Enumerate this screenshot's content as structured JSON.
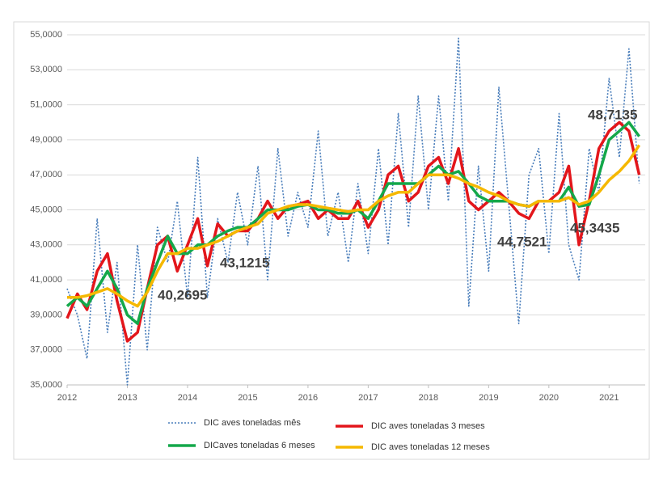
{
  "chart_data": {
    "type": "line",
    "x": [
      2012.0,
      2012.17,
      2012.33,
      2012.5,
      2012.67,
      2012.83,
      2013.0,
      2013.17,
      2013.33,
      2013.5,
      2013.67,
      2013.83,
      2014.0,
      2014.17,
      2014.33,
      2014.5,
      2014.67,
      2014.83,
      2015.0,
      2015.17,
      2015.33,
      2015.5,
      2015.67,
      2015.83,
      2016.0,
      2016.17,
      2016.33,
      2016.5,
      2016.67,
      2016.83,
      2017.0,
      2017.17,
      2017.33,
      2017.5,
      2017.67,
      2017.83,
      2018.0,
      2018.17,
      2018.33,
      2018.5,
      2018.67,
      2018.83,
      2019.0,
      2019.17,
      2019.33,
      2019.5,
      2019.67,
      2019.83,
      2020.0,
      2020.17,
      2020.33,
      2020.5,
      2020.67,
      2020.83,
      2021.0,
      2021.17,
      2021.33,
      2021.5
    ],
    "xlim": [
      2012,
      2021.6
    ],
    "xticks": [
      2012,
      2013,
      2014,
      2015,
      2016,
      2017,
      2018,
      2019,
      2020,
      2021
    ],
    "ylim": [
      35,
      55
    ],
    "yticks": [
      {
        "value": 35,
        "label": "35,0000"
      },
      {
        "value": 37,
        "label": "37,0000"
      },
      {
        "value": 39,
        "label": "39,0000"
      },
      {
        "value": 41,
        "label": "41,0000"
      },
      {
        "value": 43,
        "label": "43,0000"
      },
      {
        "value": 45,
        "label": "45,0000"
      },
      {
        "value": 47,
        "label": "47,0000"
      },
      {
        "value": 49,
        "label": "49,0000"
      },
      {
        "value": 51,
        "label": "51,0000"
      },
      {
        "value": 53,
        "label": "53,0000"
      },
      {
        "value": 55,
        "label": "55,0000"
      }
    ],
    "grid": true,
    "series": [
      {
        "name": "DIC aves toneladas mês",
        "color": "#4a7ebb",
        "dashed": true,
        "values": [
          40.5,
          39,
          36.5,
          44.5,
          38,
          42,
          35,
          43,
          37,
          44,
          42,
          45.5,
          40,
          48,
          40,
          44.5,
          42,
          46,
          43,
          47.5,
          41,
          48.5,
          43.5,
          46,
          44,
          49.5,
          43.5,
          46,
          42,
          46.5,
          42.5,
          48.5,
          43,
          50.5,
          44,
          51.5,
          45,
          51.5,
          45.5,
          54.8,
          39.5,
          47.5,
          41.5,
          52,
          45.5,
          38.5,
          47,
          48.5,
          42.5,
          50.5,
          43,
          41,
          48.5,
          46,
          52.5,
          48,
          54.2,
          46.5
        ]
      },
      {
        "name": "DIC aves toneladas 3 meses",
        "color": "#e3161b",
        "dashed": false,
        "values": [
          38.8,
          40.2,
          39.3,
          41.5,
          42.5,
          39.8,
          37.5,
          38,
          40.5,
          43,
          43.5,
          41.5,
          43,
          44.5,
          41.8,
          44.2,
          43.5,
          43.8,
          43.8,
          44.5,
          45.5,
          44.5,
          45.2,
          45.3,
          45.5,
          44.5,
          45,
          44.5,
          44.5,
          45.5,
          44,
          45,
          47,
          47.5,
          45.5,
          46,
          47.5,
          48,
          46.5,
          48.5,
          45.5,
          45,
          45.5,
          46,
          45.5,
          44.8,
          44.5,
          45.5,
          45.5,
          46,
          47.5,
          43,
          45.5,
          48.5,
          49.5,
          50,
          49.5,
          47
        ]
      },
      {
        "name": "DICaves toneladas 6 meses",
        "color": "#14a84a",
        "dashed": false,
        "values": [
          39.5,
          40,
          39.5,
          40.5,
          41.5,
          40.5,
          39,
          38.5,
          40.5,
          42,
          43.5,
          42.5,
          42.5,
          43,
          43,
          43.5,
          43.8,
          44,
          44,
          44.5,
          45,
          45,
          45,
          45.2,
          45.3,
          45,
          45,
          44.8,
          44.8,
          45,
          44.5,
          45.5,
          46.5,
          46.5,
          46.5,
          46.5,
          47,
          47.5,
          47,
          47.2,
          46.5,
          45.8,
          45.5,
          45.5,
          45.5,
          45.3,
          45.2,
          45.5,
          45.5,
          45.5,
          46.3,
          45.2,
          45.3,
          47,
          49,
          49.5,
          50,
          49.2
        ]
      },
      {
        "name": "DIC aves toneladas 12 meses",
        "color": "#f5b800",
        "dashed": false,
        "values": [
          40,
          40,
          40.1,
          40.3,
          40.5,
          40.2,
          39.8,
          39.5,
          40.3,
          41.5,
          42.5,
          42.5,
          42.8,
          42.8,
          43,
          43.2,
          43.5,
          43.8,
          44,
          44.2,
          44.8,
          45,
          45.2,
          45.3,
          45.3,
          45.2,
          45.1,
          45,
          44.9,
          45,
          45,
          45.5,
          45.8,
          46,
          46,
          46.5,
          47,
          47,
          47,
          46.8,
          46.5,
          46.3,
          46,
          45.8,
          45.5,
          45.3,
          45.2,
          45.5,
          45.5,
          45.5,
          45.7,
          45.3,
          45.5,
          46,
          46.7,
          47.2,
          47.8,
          48.7
        ]
      }
    ],
    "annotations": [
      {
        "value": 40.2695,
        "label": "40,2695"
      },
      {
        "value": 43.1215,
        "label": "43,1215"
      },
      {
        "value": 44.7521,
        "label": "44,7521"
      },
      {
        "value": 45.3435,
        "label": "45,3435"
      },
      {
        "value": 48.7135,
        "label": "48,7135"
      }
    ]
  }
}
